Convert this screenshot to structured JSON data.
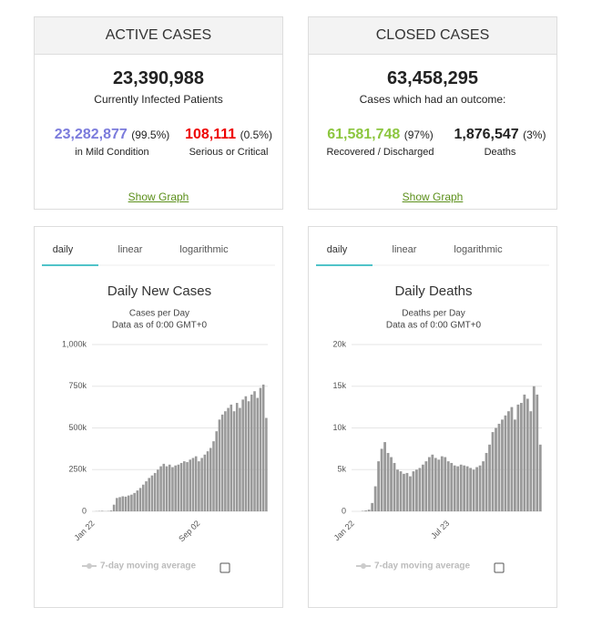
{
  "active": {
    "title": "ACTIVE CASES",
    "total": "23,390,988",
    "total_label": "Currently Infected Patients",
    "mild": "23,282,877",
    "mild_pct": "(99.5%)",
    "mild_label": "in Mild Condition",
    "serious": "108,111",
    "serious_pct": "(0.5%)",
    "serious_label": "Serious or Critical",
    "link": "Show Graph"
  },
  "closed": {
    "title": "CLOSED CASES",
    "total": "63,458,295",
    "total_label": "Cases which had an outcome:",
    "recovered": "61,581,748",
    "recovered_pct": "(97%)",
    "recovered_label": "Recovered / Discharged",
    "deaths": "1,876,547",
    "deaths_pct": "(3%)",
    "deaths_label": "Deaths",
    "link": "Show Graph"
  },
  "tabs": [
    "daily",
    "linear",
    "logarithmic"
  ],
  "chart_data": [
    {
      "type": "bar",
      "title": "Daily New Cases",
      "subtitle": "Cases per Day",
      "note": "Data as of 0:00 GMT+0",
      "color": "#999999",
      "legend": "7-day moving average",
      "categories": [
        "Jan 22",
        null,
        null,
        null,
        null,
        null,
        null,
        null,
        null,
        null,
        null,
        null,
        null,
        null,
        null,
        null,
        null,
        null,
        null,
        null,
        null,
        null,
        null,
        null,
        null,
        null,
        null,
        null,
        null,
        null,
        null,
        null,
        null,
        null,
        null,
        null,
        "Sep 02",
        null,
        null,
        null,
        null,
        null,
        null,
        null,
        null,
        null,
        null,
        null,
        null,
        null,
        null,
        null,
        null,
        null,
        null,
        null,
        null,
        null,
        null,
        null
      ],
      "values": [
        0,
        1000,
        2000,
        3000,
        1000,
        2000,
        5000,
        40000,
        80000,
        85000,
        90000,
        88000,
        95000,
        100000,
        110000,
        125000,
        140000,
        160000,
        180000,
        200000,
        215000,
        230000,
        250000,
        270000,
        285000,
        270000,
        280000,
        265000,
        275000,
        280000,
        290000,
        300000,
        295000,
        310000,
        320000,
        330000,
        300000,
        320000,
        340000,
        360000,
        380000,
        420000,
        480000,
        550000,
        580000,
        600000,
        620000,
        640000,
        600000,
        650000,
        620000,
        670000,
        690000,
        660000,
        700000,
        720000,
        680000,
        740000,
        760000,
        560000
      ],
      "ylim": [
        0,
        1000000
      ],
      "yticks": [
        0,
        {
          "value": 250000,
          "label": "250k"
        },
        {
          "value": 500000,
          "label": "500k"
        },
        {
          "value": 750000,
          "label": "750k"
        },
        {
          "value": 1000000,
          "label": "1,000k"
        }
      ]
    },
    {
      "type": "bar",
      "title": "Daily Deaths",
      "subtitle": "Deaths per Day",
      "note": "Data as of 0:00 GMT+0",
      "color": "#999999",
      "legend": "7-day moving average",
      "categories": [
        "Jan 22",
        null,
        null,
        null,
        null,
        null,
        null,
        null,
        null,
        null,
        null,
        null,
        null,
        null,
        null,
        null,
        null,
        null,
        null,
        null,
        null,
        null,
        null,
        null,
        null,
        null,
        null,
        null,
        null,
        null,
        "Jul 23",
        null,
        null,
        null,
        null,
        null,
        null,
        null,
        null,
        null,
        null,
        null,
        null,
        null,
        null,
        null,
        null,
        null,
        null,
        null,
        null,
        null,
        null,
        null,
        null,
        null,
        null,
        null,
        null,
        null
      ],
      "values": [
        0,
        0,
        0,
        50,
        100,
        200,
        1000,
        3000,
        6000,
        7500,
        8300,
        7000,
        6500,
        5800,
        5000,
        4800,
        4500,
        4600,
        4200,
        4800,
        5000,
        5200,
        5600,
        6000,
        6500,
        6800,
        6400,
        6200,
        6600,
        6500,
        6000,
        5800,
        5500,
        5400,
        5600,
        5500,
        5400,
        5200,
        5000,
        5300,
        5500,
        6000,
        7000,
        8000,
        9500,
        10000,
        10500,
        11000,
        11500,
        12000,
        12500,
        11000,
        12800,
        13000,
        14000,
        13500,
        12000,
        15000,
        14000,
        8000
      ],
      "ylim": [
        0,
        20000
      ],
      "yticks": [
        0,
        {
          "value": 5000,
          "label": "5k"
        },
        {
          "value": 10000,
          "label": "10k"
        },
        {
          "value": 15000,
          "label": "15k"
        },
        {
          "value": 20000,
          "label": "20k"
        }
      ]
    }
  ]
}
